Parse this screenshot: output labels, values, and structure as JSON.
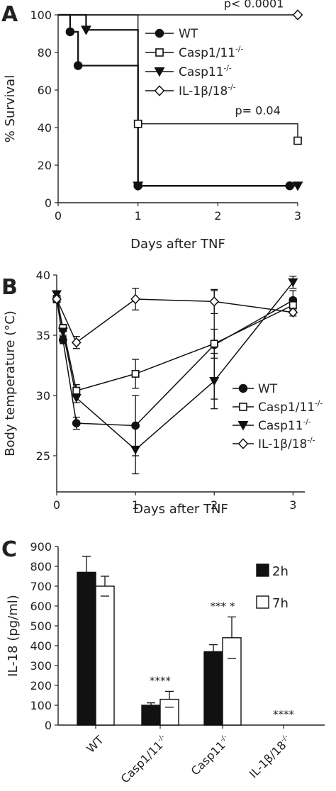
{
  "chart_data": [
    {
      "panel": "A",
      "type": "line",
      "step": true,
      "xlabel": "Days after TNF",
      "ylabel": "% Survival",
      "xlim": [
        0,
        3
      ],
      "ylim": [
        0,
        100
      ],
      "xticks": [
        "0",
        "1",
        "2",
        "3"
      ],
      "yticks": [
        "0",
        "20",
        "40",
        "60",
        "80",
        "100"
      ],
      "legend_position": "right",
      "grid": false,
      "series": [
        {
          "name": "WT",
          "marker": "circle",
          "fill": "black",
          "x": [
            0,
            0.15,
            0.25,
            1,
            2.9
          ],
          "y": [
            100,
            91,
            73,
            9,
            9
          ]
        },
        {
          "name": "Casp1/11",
          "sup": "-/-",
          "marker": "square",
          "fill": "white",
          "x": [
            0,
            1,
            3
          ],
          "y": [
            100,
            42,
            33
          ]
        },
        {
          "name": "Casp11",
          "sup": "-/-",
          "marker": "triangle-down",
          "fill": "black",
          "x": [
            0,
            0.35,
            1,
            3
          ],
          "y": [
            100,
            92,
            9,
            9
          ]
        },
        {
          "name": "IL-1β/18",
          "sup": "-/-",
          "marker": "diamond",
          "fill": "white",
          "x": [
            0,
            3
          ],
          "y": [
            100,
            100
          ]
        }
      ],
      "annotations": [
        {
          "text": "p< 0.0001",
          "x": 2.45,
          "y": 104
        },
        {
          "text": "p= 0.04",
          "x": 2.5,
          "y": 47
        }
      ]
    },
    {
      "panel": "B",
      "type": "line",
      "xlabel": "Days after TNF",
      "ylabel": "Body temperature (°C)",
      "xlim": [
        0,
        3.15
      ],
      "ylim": [
        22,
        40
      ],
      "xticks": [
        "0",
        "1",
        "2",
        "3"
      ],
      "yticks": [
        "25",
        "30",
        "35",
        "40"
      ],
      "legend_position": "bottom-right",
      "grid": false,
      "series": [
        {
          "name": "WT",
          "marker": "circle",
          "fill": "black",
          "x": [
            0,
            0.08,
            0.25,
            1,
            2,
            3
          ],
          "y": [
            38.0,
            34.6,
            27.7,
            27.5,
            34.2,
            37.9
          ],
          "err": [
            0.3,
            0.3,
            0.5,
            2.5,
            4.5,
            0.8
          ]
        },
        {
          "name": "Casp1/11",
          "sup": "-/-",
          "marker": "square",
          "fill": "white",
          "x": [
            0,
            0.08,
            0.25,
            1,
            2,
            3
          ],
          "y": [
            38.0,
            35.6,
            30.4,
            31.8,
            34.3,
            37.5
          ],
          "err": [
            0.3,
            0.3,
            0.5,
            1.2,
            1.2,
            0.6
          ]
        },
        {
          "name": "Casp11",
          "sup": "-/-",
          "marker": "triangle-down",
          "fill": "black",
          "x": [
            0,
            0.08,
            0.25,
            1,
            2,
            3
          ],
          "y": [
            38.4,
            35.3,
            29.8,
            25.5,
            31.2,
            39.4
          ],
          "err": [
            0.3,
            0.3,
            0.4,
            2.0,
            2.3,
            0.5
          ]
        },
        {
          "name": "IL-1β/18",
          "sup": "-/-",
          "marker": "diamond",
          "fill": "white",
          "x": [
            0,
            0.25,
            1,
            2,
            3
          ],
          "y": [
            38.0,
            34.4,
            38.0,
            37.8,
            36.9
          ],
          "err": [
            0.2,
            0.5,
            0.9,
            1.0,
            0.3
          ]
        }
      ]
    },
    {
      "panel": "C",
      "type": "bar",
      "ylabel": "IL-18 (pg/ml)",
      "ylim": [
        0,
        900
      ],
      "yticks": [
        "0",
        "100",
        "200",
        "300",
        "400",
        "500",
        "600",
        "700",
        "800",
        "900"
      ],
      "legend_position": "top-right",
      "grid": false,
      "categories": [
        {
          "name": "WT",
          "sup": ""
        },
        {
          "name": "Casp1/11",
          "sup": "-/-"
        },
        {
          "name": "Casp11",
          "sup": "-/-"
        },
        {
          "name": "IL-1β/18",
          "sup": "-/-"
        }
      ],
      "series": [
        {
          "name": "2h",
          "fill": "black",
          "values": [
            770,
            100,
            370,
            0
          ],
          "err": [
            80,
            12,
            35,
            0
          ]
        },
        {
          "name": "7h",
          "fill": "white",
          "values": [
            700,
            130,
            440,
            0
          ],
          "err": [
            50,
            40,
            105,
            0
          ]
        }
      ],
      "significance": [
        "",
        "****",
        "***   *",
        "****"
      ]
    }
  ]
}
